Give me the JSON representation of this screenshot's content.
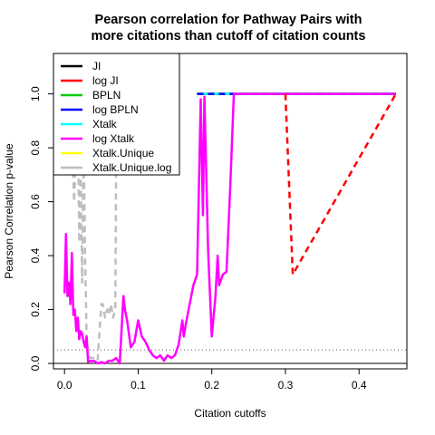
{
  "chart_data": {
    "type": "line",
    "title": "Pearson correlation for Pathway Pairs with\nmore citations than cutoff of citation counts",
    "xlabel": "Citation cutoffs",
    "ylabel": "Pearson Correlation p-value",
    "xlim": [
      -0.015,
      0.465
    ],
    "ylim": [
      -0.02,
      1.15
    ],
    "xticks": [
      0.0,
      0.1,
      0.2,
      0.3,
      0.4
    ],
    "xtick_labels": [
      "0.0",
      "0.1",
      "0.2",
      "0.3",
      "0.4"
    ],
    "yticks": [
      0.0,
      0.2,
      0.4,
      0.6,
      0.8,
      1.0
    ],
    "ytick_labels": [
      "0.0",
      "0.2",
      "0.4",
      "0.6",
      "0.8",
      "1.0"
    ],
    "reference_lines": [
      {
        "y": 0.05,
        "style": "dotted",
        "color": "#555555"
      },
      {
        "y": 0.0,
        "style": "solid",
        "color": "#000000"
      }
    ],
    "legend_position": "top-left",
    "series": [
      {
        "name": "JI",
        "color": "#000000",
        "dash": "solid",
        "width": 2.5,
        "x": [
          0.18,
          0.45
        ],
        "y": [
          1.0,
          1.0
        ]
      },
      {
        "name": "log JI",
        "color": "#ff0000",
        "dash": "dashed",
        "width": 2.5,
        "x": [
          0.3,
          0.31,
          0.45
        ],
        "y": [
          1.0,
          0.33,
          1.0
        ]
      },
      {
        "name": "BPLN",
        "color": "#00cd00",
        "dash": "solid",
        "width": 2.5,
        "x": [
          0.18,
          0.45
        ],
        "y": [
          1.0,
          1.0
        ]
      },
      {
        "name": "log BPLN",
        "color": "#0000ff",
        "dash": "dashed",
        "width": 2.5,
        "x": [
          0.18,
          0.45
        ],
        "y": [
          1.0,
          1.0
        ]
      },
      {
        "name": "Xtalk",
        "color": "#00ffff",
        "dash": "solid",
        "width": 2.5,
        "x": [
          0.18,
          0.45
        ],
        "y": [
          1.0,
          1.0
        ]
      },
      {
        "name": "log Xtalk",
        "color": "#ff00ff",
        "dash": "solid",
        "width": 2.5,
        "x": [
          0.0,
          0.002,
          0.004,
          0.006,
          0.008,
          0.01,
          0.012,
          0.014,
          0.016,
          0.018,
          0.02,
          0.022,
          0.024,
          0.026,
          0.028,
          0.03,
          0.032,
          0.034,
          0.036,
          0.04,
          0.045,
          0.05,
          0.055,
          0.06,
          0.065,
          0.07,
          0.075,
          0.08,
          0.082,
          0.085,
          0.09,
          0.095,
          0.1,
          0.105,
          0.11,
          0.115,
          0.12,
          0.125,
          0.13,
          0.135,
          0.14,
          0.145,
          0.15,
          0.155,
          0.16,
          0.162,
          0.165,
          0.17,
          0.175,
          0.18,
          0.185,
          0.188,
          0.19,
          0.195,
          0.2,
          0.205,
          0.208,
          0.21,
          0.215,
          0.22,
          0.225,
          0.23,
          0.45
        ],
        "y": [
          0.26,
          0.48,
          0.25,
          0.3,
          0.22,
          0.41,
          0.18,
          0.2,
          0.12,
          0.17,
          0.09,
          0.12,
          0.11,
          0.08,
          0.06,
          0.1,
          0.005,
          0.01,
          0.008,
          0.01,
          0.0,
          0.005,
          0.0,
          0.01,
          0.01,
          0.02,
          0.0,
          0.25,
          0.2,
          0.16,
          0.06,
          0.08,
          0.16,
          0.1,
          0.08,
          0.05,
          0.03,
          0.02,
          0.03,
          0.01,
          0.03,
          0.02,
          0.03,
          0.07,
          0.16,
          0.1,
          0.15,
          0.22,
          0.29,
          0.33,
          0.98,
          0.55,
          0.99,
          0.42,
          0.1,
          0.25,
          0.4,
          0.29,
          0.33,
          0.34,
          0.65,
          1.0,
          1.0
        ]
      },
      {
        "name": "Xtalk.Unique",
        "color": "#ffff00",
        "dash": "dashed",
        "width": 2.5,
        "x": [
          0.18,
          0.45
        ],
        "y": [
          1.0,
          1.0
        ]
      },
      {
        "name": "Xtalk.Unique.log",
        "color": "#bebebe",
        "dash": "dashed",
        "width": 2.5,
        "x": [
          0.0,
          0.005,
          0.01,
          0.013,
          0.016,
          0.018,
          0.02,
          0.022,
          0.024,
          0.026,
          0.028,
          0.03,
          0.032,
          0.035,
          0.04,
          0.045,
          0.05,
          0.052,
          0.055,
          0.058,
          0.06,
          0.063,
          0.066,
          0.069,
          0.07,
          0.072,
          0.075
        ],
        "y": [
          0.95,
          0.9,
          0.85,
          0.6,
          0.8,
          0.95,
          0.45,
          0.75,
          0.3,
          0.8,
          0.4,
          0.1,
          0.05,
          0.02,
          0.02,
          0.01,
          0.22,
          0.22,
          0.17,
          0.2,
          0.18,
          0.22,
          0.17,
          0.2,
          0.7,
          0.9,
          1.0
        ]
      }
    ]
  }
}
